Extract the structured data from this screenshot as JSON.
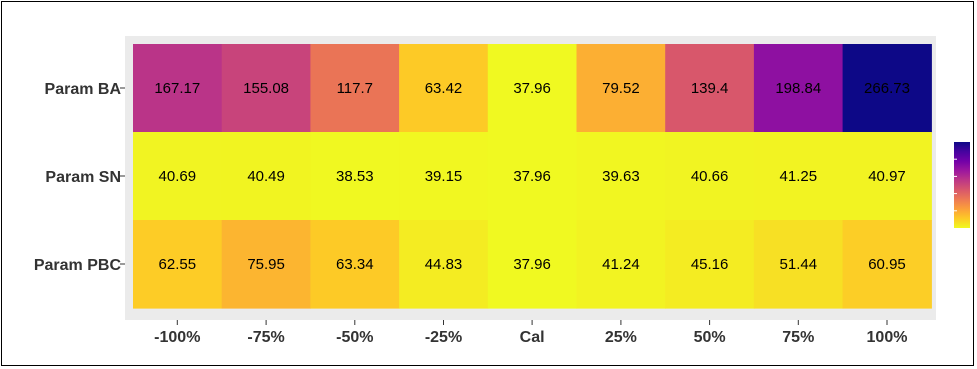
{
  "chart_data": {
    "type": "heatmap",
    "title": "",
    "xlabel": "",
    "ylabel": "",
    "columns": [
      "-100%",
      "-75%",
      "-50%",
      "-25%",
      "Cal",
      "25%",
      "50%",
      "75%",
      "100%"
    ],
    "rows": [
      "Param BA",
      "Param SN",
      "Param PBC"
    ],
    "values": [
      [
        167.17,
        155.08,
        117.7,
        63.42,
        37.96,
        79.52,
        139.4,
        198.84,
        266.73
      ],
      [
        40.69,
        40.49,
        38.53,
        39.15,
        37.96,
        39.63,
        40.66,
        41.25,
        40.97
      ],
      [
        62.55,
        75.95,
        63.34,
        44.83,
        37.96,
        41.24,
        45.16,
        51.44,
        60.95
      ]
    ],
    "color_scale": {
      "name": "plasma-reversed",
      "range": [
        37.96,
        266.73
      ],
      "stops": [
        "#f0f921",
        "#fdca26",
        "#fb9f3a",
        "#ed7953",
        "#d8576b",
        "#bd3786",
        "#9c179e",
        "#7201a8",
        "#46039f",
        "#0d0887"
      ]
    },
    "legend": {
      "type": "colorbar",
      "placement": "right"
    },
    "grid": true
  }
}
